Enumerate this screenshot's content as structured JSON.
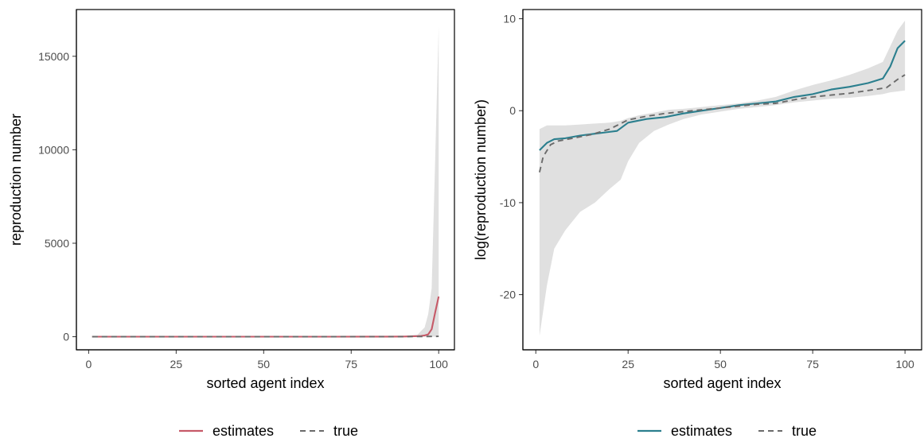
{
  "chart_data": [
    {
      "type": "line",
      "xlabel": "sorted agent index",
      "ylabel": "reproduction number",
      "xlim": [
        -3.5,
        104.5
      ],
      "ylim": [
        -700,
        17500
      ],
      "xticks": [
        0,
        25,
        50,
        75,
        100
      ],
      "yticks": [
        0,
        5000,
        10000,
        15000
      ],
      "ytick_labels": [
        "0",
        "5000",
        "10000",
        "15000"
      ],
      "grid": false,
      "legend_position": "bottom",
      "colors": {
        "estimates": "#c65a68",
        "true": "#6b6b6b",
        "band": "#e0e0e0"
      },
      "legend": [
        {
          "label": "estimates",
          "style": "solid",
          "color": "#c65a68"
        },
        {
          "label": "true",
          "style": "dashed",
          "color": "#6b6b6b"
        }
      ],
      "series": [
        {
          "name": "estimates",
          "style": "solid",
          "color": "#c65a68",
          "x": [
            1,
            10,
            20,
            30,
            40,
            50,
            60,
            70,
            80,
            85,
            90,
            92,
            94,
            95,
            96,
            97,
            98,
            99,
            100
          ],
          "values": [
            0,
            0,
            0,
            0,
            1,
            1,
            2,
            3,
            5,
            8,
            12,
            18,
            30,
            45,
            70,
            120,
            400,
            1300,
            2150
          ]
        },
        {
          "name": "true",
          "style": "dashed",
          "color": "#6b6b6b",
          "x": [
            1,
            10,
            20,
            30,
            40,
            50,
            60,
            70,
            80,
            90,
            95,
            100
          ],
          "values": [
            0,
            0,
            0,
            0,
            1,
            1,
            2,
            3,
            5,
            8,
            12,
            20
          ]
        }
      ],
      "band": {
        "x": [
          1,
          50,
          80,
          90,
          94,
          96,
          97,
          98,
          99,
          100
        ],
        "upper": [
          0,
          1,
          8,
          30,
          120,
          500,
          1200,
          2600,
          9500,
          16600
        ],
        "lower": [
          0,
          0,
          0,
          0,
          0,
          0,
          0,
          0,
          0,
          0
        ]
      }
    },
    {
      "type": "line",
      "xlabel": "sorted agent index",
      "ylabel": "log(reproduction number)",
      "xlim": [
        -3.5,
        104.5
      ],
      "ylim": [
        -26,
        11
      ],
      "xticks": [
        0,
        25,
        50,
        75,
        100
      ],
      "yticks": [
        -20,
        -10,
        0,
        10
      ],
      "ytick_labels": [
        "-20",
        "-10",
        "0",
        "10"
      ],
      "grid": false,
      "legend_position": "bottom",
      "colors": {
        "estimates": "#2b7f8e",
        "true": "#6b6b6b",
        "band": "#e0e0e0"
      },
      "legend": [
        {
          "label": "estimates",
          "style": "solid",
          "color": "#2b7f8e"
        },
        {
          "label": "true",
          "style": "dashed",
          "color": "#6b6b6b"
        }
      ],
      "series": [
        {
          "name": "estimates",
          "style": "solid",
          "color": "#2b7f8e",
          "x": [
            1,
            2,
            3,
            5,
            8,
            12,
            16,
            22,
            25,
            30,
            35,
            40,
            45,
            50,
            55,
            60,
            65,
            70,
            75,
            80,
            85,
            90,
            94,
            96,
            98,
            100
          ],
          "values": [
            -4.3,
            -3.9,
            -3.5,
            -3.1,
            -3.0,
            -2.7,
            -2.5,
            -2.2,
            -1.3,
            -0.9,
            -0.7,
            -0.3,
            0.0,
            0.3,
            0.6,
            0.8,
            1.0,
            1.5,
            1.8,
            2.3,
            2.6,
            3.0,
            3.5,
            4.8,
            6.8,
            7.6
          ]
        },
        {
          "name": "true",
          "style": "dashed",
          "color": "#6b6b6b",
          "x": [
            1,
            2,
            4,
            6,
            10,
            15,
            20,
            25,
            30,
            35,
            40,
            45,
            50,
            55,
            60,
            65,
            70,
            75,
            80,
            85,
            90,
            95,
            98,
            100
          ],
          "values": [
            -6.7,
            -5.0,
            -3.7,
            -3.3,
            -3.0,
            -2.6,
            -2.0,
            -1.0,
            -0.6,
            -0.3,
            -0.1,
            0.1,
            0.3,
            0.5,
            0.7,
            0.8,
            1.2,
            1.5,
            1.7,
            1.9,
            2.2,
            2.5,
            3.4,
            3.9
          ]
        }
      ],
      "band": {
        "x": [
          1,
          3,
          5,
          8,
          12,
          16,
          20,
          23,
          25,
          28,
          32,
          36,
          40,
          45,
          50,
          55,
          60,
          65,
          70,
          75,
          80,
          85,
          90,
          94,
          96,
          98,
          100
        ],
        "upper": [
          -2.0,
          -1.6,
          -1.6,
          -1.6,
          -1.5,
          -1.4,
          -1.3,
          -1.1,
          -0.8,
          -0.5,
          -0.2,
          0.1,
          0.2,
          0.4,
          0.6,
          0.8,
          1.1,
          1.5,
          2.2,
          2.8,
          3.3,
          3.9,
          4.6,
          5.3,
          7.0,
          8.7,
          9.8
        ],
        "lower": [
          -24.5,
          -19.0,
          -15.0,
          -13.0,
          -11.0,
          -10.0,
          -8.5,
          -7.5,
          -5.5,
          -3.5,
          -2.2,
          -1.5,
          -0.9,
          -0.4,
          -0.1,
          0.2,
          0.4,
          0.6,
          0.9,
          1.1,
          1.3,
          1.4,
          1.6,
          1.8,
          2.0,
          2.1,
          2.2
        ]
      }
    }
  ]
}
